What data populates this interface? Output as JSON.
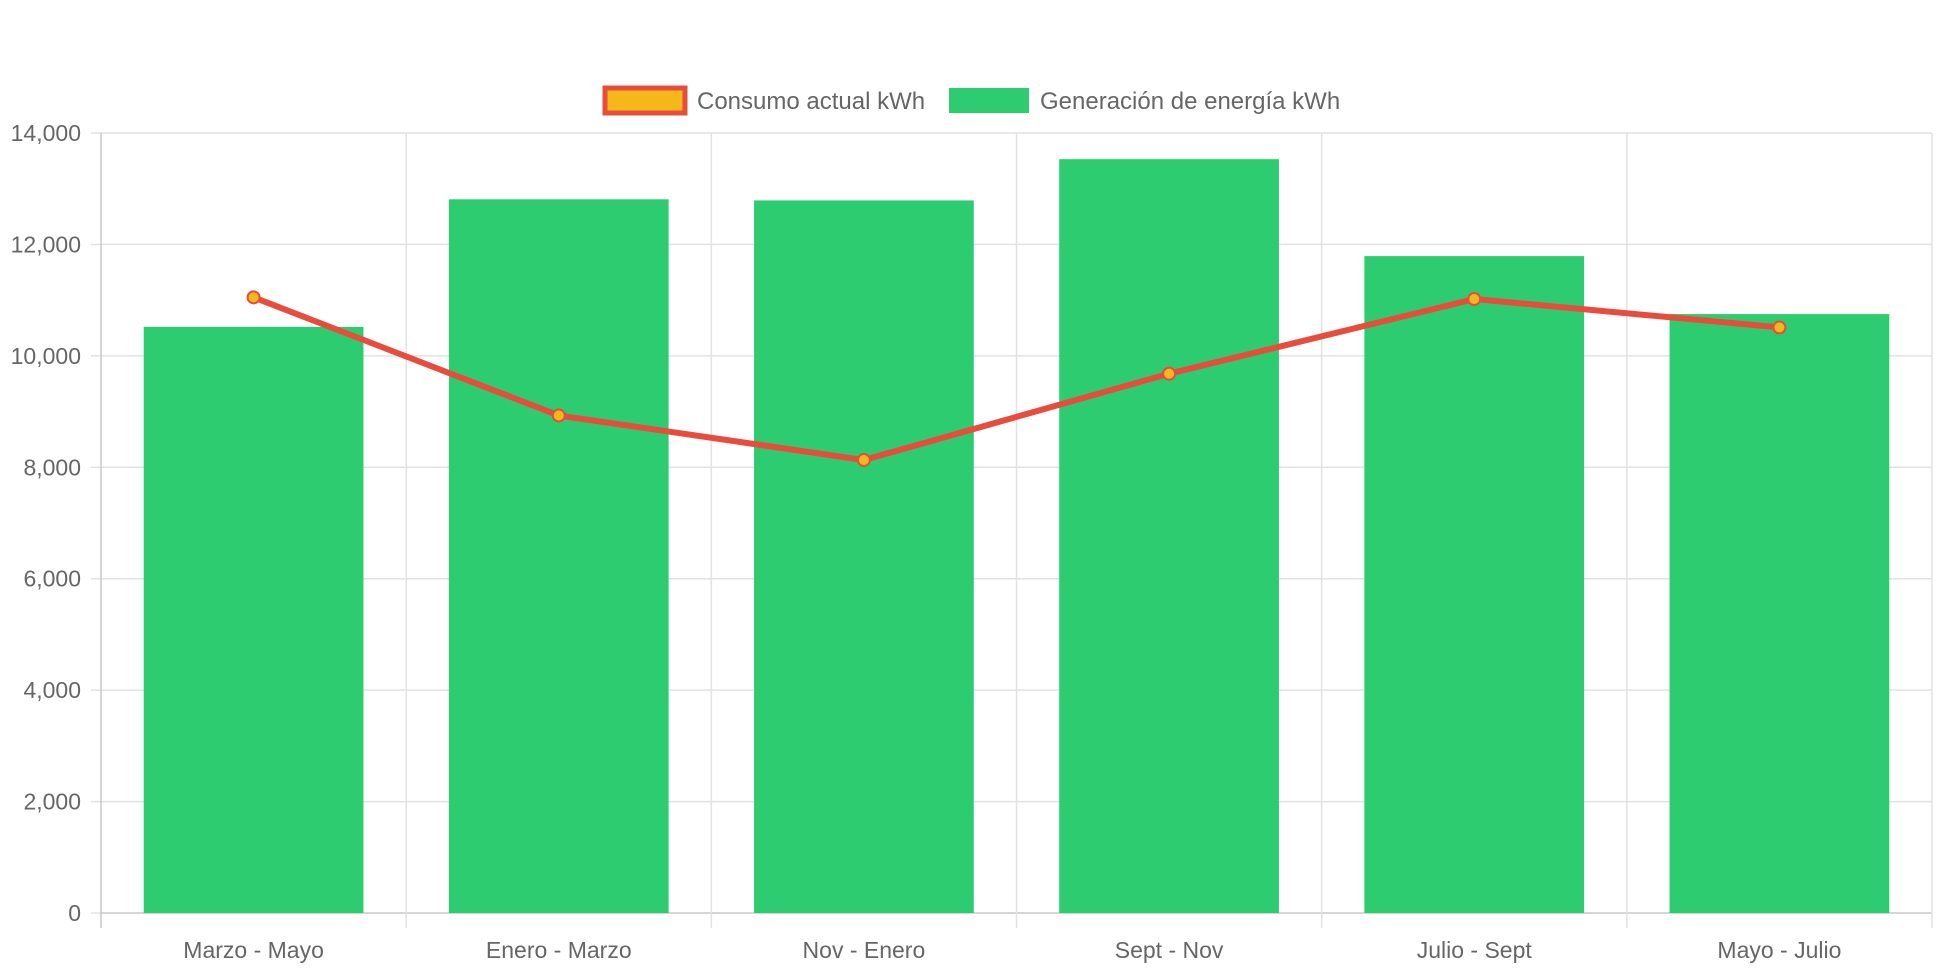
{
  "chart_data": {
    "type": "bar",
    "categories": [
      "Marzo - Mayo",
      "Enero - Marzo",
      "Nov - Enero",
      "Sept - Nov",
      "Julio - Sept",
      "Mayo - Julio"
    ],
    "series": [
      {
        "name": "Consumo actual kWh",
        "type": "line",
        "values": [
          11050,
          8930,
          8130,
          9680,
          11020,
          10510
        ],
        "line_color": "#e74c3c",
        "point_fill": "#f5b81b"
      },
      {
        "name": "Generación de energía kWh",
        "type": "bar",
        "values": [
          10520,
          12810,
          12790,
          13530,
          11790,
          10750
        ],
        "color": "#2ecc71"
      }
    ],
    "y_ticks": [
      "0",
      "2,000",
      "4,000",
      "6,000",
      "8,000",
      "10,000",
      "12,000",
      "14,000"
    ],
    "ylim": [
      0,
      14000
    ],
    "grid": true,
    "legend_position": "top"
  }
}
